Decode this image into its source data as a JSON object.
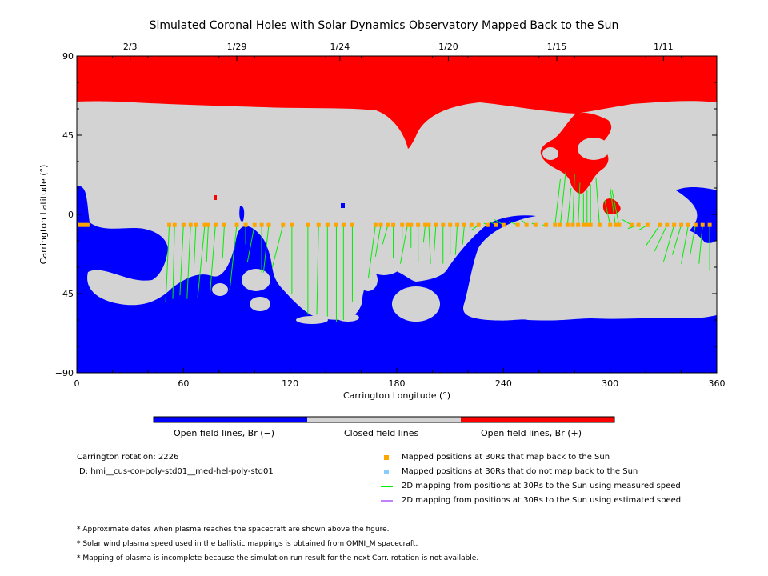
{
  "title": "Simulated Coronal Holes with Solar Dynamics Observatory Mapped Back to the Sun",
  "colors": {
    "open_negative": "#0000ff",
    "closed": "#d3d3d3",
    "open_positive": "#ff0000",
    "mapped_back": "#ffa500",
    "not_mapped": "#87cefa",
    "measured_speed": "#00ee00",
    "estimated_speed": "#c080ff"
  },
  "chart_data": {
    "type": "map",
    "title": "Simulated Coronal Holes with Solar Dynamics Observatory Mapped Back to the Sun",
    "xlabel": "Carrington Longitude (°)",
    "ylabel": "Carrington Latitude (°)",
    "xlim": [
      0,
      360
    ],
    "ylim": [
      -90,
      90
    ],
    "xticks": [
      "0",
      "60",
      "120",
      "180",
      "240",
      "300",
      "360"
    ],
    "yticks": [
      "90",
      "45",
      "0",
      "-45",
      "-90"
    ],
    "top_axis": {
      "labels": [
        "2/3",
        "1/29",
        "1/24",
        "1/20",
        "1/15",
        "1/11"
      ],
      "longitudes": [
        30,
        90,
        148,
        209,
        270,
        330
      ]
    },
    "regions": {
      "north_polar_positive_lat_boundary": 65,
      "south_polar_negative_lat_boundary": -52
    },
    "mapped_points": {
      "lat_at_30Rs": -6,
      "lon": [
        2,
        4,
        6,
        52,
        55,
        60,
        64,
        67,
        72,
        74,
        78,
        83,
        90,
        95,
        100,
        104,
        108,
        116,
        121,
        130,
        136,
        141,
        146,
        150,
        155,
        168,
        171,
        175,
        178,
        183,
        186,
        188,
        192,
        196,
        198,
        202,
        206,
        210,
        214,
        218,
        222,
        226,
        231,
        236,
        240,
        248,
        253,
        258,
        264,
        269,
        272,
        276,
        279,
        282,
        285,
        287,
        289,
        294,
        300,
        303,
        305,
        312,
        316,
        321,
        328,
        332,
        336,
        340,
        344,
        348,
        352,
        356
      ],
      "footpoint_lat": [
        -4,
        -5,
        -6,
        -50,
        -48,
        -46,
        -48,
        -28,
        -47,
        -27,
        -44,
        -25,
        -43,
        -17,
        -27,
        -33,
        -33,
        -30,
        -45,
        -57,
        -57,
        -58,
        -61,
        -60,
        -50,
        -36,
        -24,
        -17,
        -25,
        -14,
        -28,
        -19,
        -27,
        -16,
        -28,
        -21,
        -28,
        -23,
        -23,
        -17,
        -8,
        -9,
        -5,
        -4,
        -3,
        -4,
        -3,
        -5,
        -6,
        20,
        24,
        15,
        23,
        18,
        12,
        14,
        17,
        21,
        8,
        15,
        14,
        -3,
        -8,
        -9,
        -18,
        -21,
        -27,
        -23,
        -28,
        -23,
        -28,
        -32
      ],
      "footpoint_lon": [
        0,
        4,
        6,
        50,
        54,
        58,
        62,
        66,
        68,
        73,
        75,
        82,
        86,
        95,
        96,
        104,
        105,
        110,
        121,
        130,
        135,
        141,
        146,
        150,
        155,
        164,
        168,
        172,
        178,
        183,
        182,
        188,
        192,
        195,
        199,
        201,
        206,
        210,
        213,
        217,
        221,
        222,
        229,
        232,
        235,
        243,
        250,
        256,
        262,
        272,
        275,
        278,
        280,
        283,
        285,
        287,
        289,
        292,
        297,
        300,
        301,
        307,
        310,
        316,
        320,
        325,
        330,
        335,
        340,
        345,
        350,
        356
      ]
    }
  },
  "colorbar": {
    "labels": [
      "Open field lines, Br (−)",
      "Closed field lines",
      "Open field lines, Br (+)"
    ]
  },
  "info": {
    "rotation": "Carrington rotation: 2226",
    "id": "ID: hmi__cus-cor-poly-std01__med-hel-poly-std01"
  },
  "legend": [
    {
      "label": "Mapped positions at 30Rs that map back to the Sun",
      "kind": "square",
      "color": "#ffa500"
    },
    {
      "label": "Mapped positions at 30Rs that do not map back to the Sun",
      "kind": "square",
      "color": "#87cefa"
    },
    {
      "label": "2D mapping from positions at 30Rs to the Sun using measured speed",
      "kind": "line",
      "color": "#00ee00"
    },
    {
      "label": "2D mapping from positions at 30Rs to the Sun using estimated speed",
      "kind": "line",
      "color": "#c080ff"
    }
  ],
  "notes": [
    "* Approximate dates when plasma reaches the spacecraft are shown above the figure.",
    "* Solar wind plasma speed used in the ballistic mappings is obtained from OMNI_M spacecraft.",
    "* Mapping of plasma is incomplete because the simulation run result for the next Carr. rotation is not available."
  ]
}
